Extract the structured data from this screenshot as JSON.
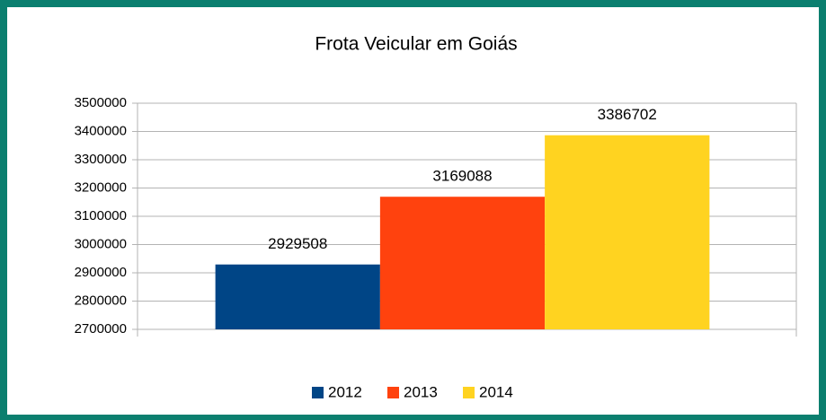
{
  "chart_data": {
    "type": "bar",
    "title": "Frota Veicular em Goiás",
    "categories": [
      null
    ],
    "series": [
      {
        "name": "2012",
        "color": "#004586",
        "values": [
          2929508
        ]
      },
      {
        "name": "2013",
        "color": "#ff420e",
        "values": [
          3169088
        ]
      },
      {
        "name": "2014",
        "color": "#ffd320",
        "values": [
          3386702
        ]
      }
    ],
    "ylim": [
      2700000,
      3500000
    ],
    "yticks": [
      2700000,
      2800000,
      2900000,
      3000000,
      3100000,
      3200000,
      3300000,
      3400000,
      3500000
    ],
    "grid": true,
    "legend": "bottom",
    "data_labels": true
  }
}
